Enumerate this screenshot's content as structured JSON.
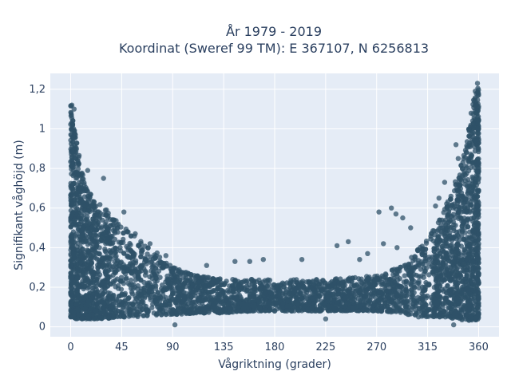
{
  "chart_data": {
    "type": "scatter",
    "title_line1": "År 1979 - 2019",
    "title_line2": "Koordinat (Sweref 99 TM): E 367107, N 6256813",
    "xlabel": "Vågriktning (grader)",
    "ylabel": "Signifikant våghöjd (m)",
    "xlim": [
      -18,
      378
    ],
    "ylim": [
      -0.05,
      1.28
    ],
    "x_ticks": [
      0,
      45,
      90,
      135,
      180,
      225,
      270,
      315,
      360
    ],
    "x_tick_labels": [
      "0",
      "45",
      "90",
      "135",
      "180",
      "225",
      "270",
      "315",
      "360"
    ],
    "y_ticks": [
      0,
      0.2,
      0.4,
      0.6,
      0.8,
      1.0,
      1.2
    ],
    "y_tick_labels": [
      "0",
      "0,2",
      "0,4",
      "0,6",
      "0,8",
      "1",
      "1,2"
    ],
    "grid": true,
    "marker_color": "#2f5268",
    "background_color": "#e5ecf6",
    "envelope": {
      "x": [
        0,
        5,
        10,
        20,
        30,
        45,
        60,
        75,
        90,
        110,
        135,
        160,
        180,
        200,
        225,
        250,
        270,
        290,
        300,
        315,
        330,
        340,
        350,
        355,
        360
      ],
      "upper": [
        1.12,
        0.95,
        0.78,
        0.65,
        0.6,
        0.52,
        0.44,
        0.38,
        0.3,
        0.26,
        0.24,
        0.24,
        0.24,
        0.24,
        0.24,
        0.25,
        0.26,
        0.3,
        0.35,
        0.45,
        0.6,
        0.75,
        0.95,
        1.15,
        1.22
      ],
      "lower": [
        0.05,
        0.04,
        0.04,
        0.04,
        0.04,
        0.05,
        0.05,
        0.06,
        0.06,
        0.07,
        0.07,
        0.08,
        0.08,
        0.08,
        0.08,
        0.08,
        0.08,
        0.07,
        0.06,
        0.05,
        0.05,
        0.04,
        0.03,
        0.03,
        0.04
      ]
    },
    "outliers": [
      {
        "x": 1,
        "y": 1.12
      },
      {
        "x": 3,
        "y": 1.1
      },
      {
        "x": 359,
        "y": 1.23
      },
      {
        "x": 357,
        "y": 1.19
      },
      {
        "x": 29,
        "y": 0.75
      },
      {
        "x": 15,
        "y": 0.79
      },
      {
        "x": 47,
        "y": 0.58
      },
      {
        "x": 57,
        "y": 0.47
      },
      {
        "x": 70,
        "y": 0.42
      },
      {
        "x": 84,
        "y": 0.36
      },
      {
        "x": 145,
        "y": 0.33
      },
      {
        "x": 158,
        "y": 0.33
      },
      {
        "x": 170,
        "y": 0.34
      },
      {
        "x": 204,
        "y": 0.34
      },
      {
        "x": 120,
        "y": 0.31
      },
      {
        "x": 235,
        "y": 0.41
      },
      {
        "x": 245,
        "y": 0.43
      },
      {
        "x": 255,
        "y": 0.34
      },
      {
        "x": 272,
        "y": 0.58
      },
      {
        "x": 283,
        "y": 0.6
      },
      {
        "x": 287,
        "y": 0.57
      },
      {
        "x": 293,
        "y": 0.55
      },
      {
        "x": 300,
        "y": 0.5
      },
      {
        "x": 276,
        "y": 0.42
      },
      {
        "x": 288,
        "y": 0.4
      },
      {
        "x": 262,
        "y": 0.37
      },
      {
        "x": 322,
        "y": 0.61
      },
      {
        "x": 325,
        "y": 0.65
      },
      {
        "x": 330,
        "y": 0.73
      },
      {
        "x": 340,
        "y": 0.92
      },
      {
        "x": 342,
        "y": 0.85
      },
      {
        "x": 225,
        "y": 0.04
      },
      {
        "x": 92,
        "y": 0.01
      },
      {
        "x": 338,
        "y": 0.01
      },
      {
        "x": 307,
        "y": 0.05
      }
    ]
  }
}
